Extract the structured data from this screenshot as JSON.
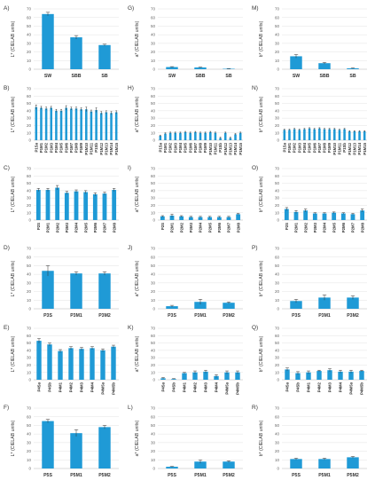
{
  "chart_data": [
    {
      "panel_label": "A)",
      "type": "bar",
      "ylabel": "L* (CIELAB units)",
      "ylim": [
        0,
        70
      ],
      "y_ticks": [
        "0",
        "10",
        "20",
        "30",
        "40",
        "50",
        "60",
        "70"
      ],
      "categories": [
        "SW",
        "SBB",
        "SB"
      ],
      "values": [
        64,
        37,
        28
      ],
      "errors": [
        2,
        2,
        1
      ],
      "grid": true,
      "bar_color": "#1f9ad6"
    },
    {
      "panel_label": "B)",
      "type": "bar",
      "ylabel": "L* (CIELAB units)",
      "ylim": [
        0,
        70
      ],
      "y_ticks": [
        "0",
        "10",
        "20",
        "30",
        "40",
        "50",
        "60",
        "70"
      ],
      "categories": [
        "P1Sa",
        "P1M1",
        "P1M2",
        "P1M3",
        "P1M4",
        "P1M5",
        "P1M6",
        "P1M7",
        "P1M8",
        "P1M9",
        "P1M10",
        "P1M11",
        "P1Sb",
        "P1M12",
        "P1M13",
        "P1M14",
        "P1M15"
      ],
      "values": [
        45,
        44,
        43,
        44,
        40,
        40,
        44,
        43,
        43,
        42,
        42,
        39,
        41,
        37,
        38,
        37,
        38
      ],
      "errors": [
        3,
        2,
        2,
        2,
        2,
        2,
        3,
        2,
        2,
        2,
        3,
        2,
        3,
        2,
        2,
        2,
        2
      ],
      "grid": true,
      "bar_color": "#1f9ad6"
    },
    {
      "panel_label": "C)",
      "type": "bar",
      "ylabel": "L* (CIELAB units)",
      "ylim": [
        0,
        70
      ],
      "y_ticks": [
        "0",
        "10",
        "20",
        "30",
        "40",
        "50",
        "60",
        "70"
      ],
      "categories": [
        "P2S",
        "P2M1",
        "P2M2",
        "P2M3",
        "P2M4",
        "P2M5",
        "P2M6",
        "P2M7",
        "P2M8"
      ],
      "values": [
        41,
        41,
        44,
        37,
        39,
        38,
        35,
        36,
        41
      ],
      "errors": [
        2,
        2,
        3,
        2,
        2,
        2,
        2,
        2,
        2
      ],
      "grid": true,
      "bar_color": "#1f9ad6"
    },
    {
      "panel_label": "D)",
      "type": "bar",
      "ylabel": "L* (CIELAB units)",
      "ylim": [
        0,
        70
      ],
      "y_ticks": [
        "0",
        "10",
        "20",
        "30",
        "40",
        "50",
        "60",
        "70"
      ],
      "categories": [
        "P3S",
        "P3M1",
        "P3M2"
      ],
      "values": [
        44,
        41,
        41
      ],
      "errors": [
        6,
        2,
        2
      ],
      "grid": true,
      "bar_color": "#1f9ad6"
    },
    {
      "panel_label": "E)",
      "type": "bar",
      "ylabel": "L* (CIELAB units)",
      "ylim": [
        0,
        70
      ],
      "y_ticks": [
        "0",
        "10",
        "20",
        "30",
        "40",
        "50",
        "60",
        "70"
      ],
      "categories": [
        "P4Sa",
        "P4Sb",
        "P4M1",
        "P4M2",
        "P4M3",
        "P4M4",
        "P4M5a",
        "P4M5b"
      ],
      "values": [
        53,
        48,
        39,
        43,
        42,
        43,
        40,
        45
      ],
      "errors": [
        3,
        2,
        2,
        2,
        2,
        2,
        2,
        2
      ],
      "grid": true,
      "bar_color": "#1f9ad6"
    },
    {
      "panel_label": "F)",
      "type": "bar",
      "ylabel": "L* (CIELAB units)",
      "ylim": [
        0,
        70
      ],
      "y_ticks": [
        "0",
        "10",
        "20",
        "30",
        "40",
        "50",
        "60",
        "70"
      ],
      "categories": [
        "P5S",
        "P5M1",
        "P5M2"
      ],
      "values": [
        55,
        41,
        48
      ],
      "errors": [
        2,
        4,
        2
      ],
      "grid": true,
      "bar_color": "#1f9ad6"
    },
    {
      "panel_label": "G)",
      "type": "bar",
      "ylabel": "a* (CIELAB units)",
      "ylim": [
        0,
        70
      ],
      "y_ticks": [
        "0",
        "10",
        "20",
        "30",
        "40",
        "50",
        "60",
        "70"
      ],
      "categories": [
        "SW",
        "SBB",
        "SB"
      ],
      "values": [
        2.5,
        2,
        0.5
      ],
      "errors": [
        0.5,
        0.5,
        0.3
      ],
      "grid": true,
      "bar_color": "#1f9ad6"
    },
    {
      "panel_label": "H)",
      "type": "bar",
      "ylabel": "a* (CIELAB units)",
      "ylim": [
        0,
        70
      ],
      "y_ticks": [
        "0",
        "10",
        "20",
        "30",
        "40",
        "50",
        "60",
        "70"
      ],
      "categories": [
        "P1Sa",
        "P1M1",
        "P1M2",
        "P1M3",
        "P1M4",
        "P1M5",
        "P1M6",
        "P1M7",
        "P1M8",
        "P1M9",
        "P1M10",
        "P1M11",
        "P1Sb",
        "P1M12",
        "P1M13",
        "P1M14",
        "P1M15"
      ],
      "values": [
        6,
        9,
        10,
        10,
        10,
        11,
        10,
        11,
        10,
        10,
        11,
        10,
        3,
        10,
        3,
        8,
        10
      ],
      "errors": [
        1,
        1,
        1,
        1,
        1,
        1,
        1,
        1,
        1,
        1,
        1,
        1,
        1,
        1,
        1,
        1,
        1
      ],
      "grid": true,
      "bar_color": "#1f9ad6"
    },
    {
      "panel_label": "I)",
      "type": "bar",
      "ylabel": "a* (CIELAB units)",
      "ylim": [
        0,
        70
      ],
      "y_ticks": [
        "0",
        "10",
        "20",
        "30",
        "40",
        "50",
        "60",
        "70"
      ],
      "categories": [
        "P2S",
        "P2M1",
        "P2M2",
        "P2M3",
        "P2M4",
        "P2M5",
        "P2M6",
        "P2M7",
        "P2M8"
      ],
      "values": [
        5,
        6,
        5,
        4,
        4,
        4,
        4,
        4,
        8
      ],
      "errors": [
        1,
        2,
        1,
        1,
        1,
        1,
        1,
        1,
        1
      ],
      "grid": true,
      "bar_color": "#1f9ad6"
    },
    {
      "panel_label": "J)",
      "type": "bar",
      "ylabel": "a* (CIELAB units)",
      "ylim": [
        0,
        70
      ],
      "y_ticks": [
        "0",
        "10",
        "20",
        "30",
        "40",
        "50",
        "60",
        "70"
      ],
      "categories": [
        "P3S",
        "P3M1",
        "P3M2"
      ],
      "values": [
        3,
        8,
        7
      ],
      "errors": [
        1,
        3,
        1
      ],
      "grid": true,
      "bar_color": "#1f9ad6"
    },
    {
      "panel_label": "K)",
      "type": "bar",
      "ylabel": "a* (CIELAB units)",
      "ylim": [
        0,
        70
      ],
      "y_ticks": [
        "0",
        "10",
        "20",
        "30",
        "40",
        "50",
        "60",
        "70"
      ],
      "categories": [
        "P4Sa",
        "P4Sb",
        "P4M1",
        "P4M2",
        "P4M3",
        "P4M4",
        "P4M5a",
        "P4M5b"
      ],
      "values": [
        2,
        1,
        9,
        10,
        11,
        5,
        10,
        10
      ],
      "errors": [
        1,
        0.5,
        1,
        2,
        2,
        2,
        2,
        2
      ],
      "grid": true,
      "bar_color": "#1f9ad6"
    },
    {
      "panel_label": "L)",
      "type": "bar",
      "ylabel": "a* (CIELAB units)",
      "ylim": [
        0,
        70
      ],
      "y_ticks": [
        "0",
        "10",
        "20",
        "30",
        "40",
        "50",
        "60",
        "70"
      ],
      "categories": [
        "P5S",
        "P5M1",
        "P5M2"
      ],
      "values": [
        2,
        8,
        8
      ],
      "errors": [
        0.5,
        2,
        1
      ],
      "grid": true,
      "bar_color": "#1f9ad6"
    },
    {
      "panel_label": "M)",
      "type": "bar",
      "ylabel": "b* (CIELAB units)",
      "ylim": [
        0,
        70
      ],
      "y_ticks": [
        "0",
        "10",
        "20",
        "30",
        "40",
        "50",
        "60",
        "70"
      ],
      "categories": [
        "SW",
        "SBB",
        "SB"
      ],
      "values": [
        15,
        7,
        1
      ],
      "errors": [
        2,
        1,
        0.5
      ],
      "grid": true,
      "bar_color": "#1f9ad6"
    },
    {
      "panel_label": "N)",
      "type": "bar",
      "ylabel": "b* (CIELAB units)",
      "ylim": [
        0,
        70
      ],
      "y_ticks": [
        "0",
        "10",
        "20",
        "30",
        "40",
        "50",
        "60",
        "70"
      ],
      "categories": [
        "P1Sa",
        "P1M1",
        "P1M2",
        "P1M3",
        "P1M4",
        "P1M5",
        "P1M6",
        "P1M7",
        "P1M8",
        "P1M9",
        "P1M10",
        "P1M11",
        "P1Sb",
        "P1M12",
        "P1M13",
        "P1M14",
        "P1M15"
      ],
      "values": [
        14,
        14,
        15,
        14,
        15,
        16,
        15,
        16,
        15,
        15,
        15,
        14,
        15,
        12,
        12,
        12,
        12
      ],
      "errors": [
        1,
        1,
        1,
        1,
        1,
        1,
        1,
        1,
        1,
        1,
        1,
        1,
        1,
        1,
        1,
        1,
        1
      ],
      "grid": true,
      "bar_color": "#1f9ad6"
    },
    {
      "panel_label": "O)",
      "type": "bar",
      "ylabel": "b* (CIELAB units)",
      "ylim": [
        0,
        70
      ],
      "y_ticks": [
        "0",
        "10",
        "20",
        "30",
        "40",
        "50",
        "60",
        "70"
      ],
      "categories": [
        "P2S",
        "P2M1",
        "P2M2",
        "P2M3",
        "P2M4",
        "P2M5",
        "P2M6",
        "P2M7",
        "P2M8"
      ],
      "values": [
        15,
        11,
        13,
        9,
        9,
        10,
        9,
        8,
        13
      ],
      "errors": [
        2,
        2,
        2,
        1,
        1,
        1,
        1,
        1,
        2
      ],
      "grid": true,
      "bar_color": "#1f9ad6"
    },
    {
      "panel_label": "P)",
      "type": "bar",
      "ylabel": "b* (CIELAB units)",
      "ylim": [
        0,
        70
      ],
      "y_ticks": [
        "0",
        "10",
        "20",
        "30",
        "40",
        "50",
        "60",
        "70"
      ],
      "categories": [
        "P3S",
        "P3M1",
        "P3M2"
      ],
      "values": [
        9,
        13,
        13
      ],
      "errors": [
        2,
        3,
        2
      ],
      "grid": true,
      "bar_color": "#1f9ad6"
    },
    {
      "panel_label": "Q)",
      "type": "bar",
      "ylabel": "b* (CIELAB units)",
      "ylim": [
        0,
        70
      ],
      "y_ticks": [
        "0",
        "10",
        "20",
        "30",
        "40",
        "50",
        "60",
        "70"
      ],
      "categories": [
        "P4Sa",
        "P4Sb",
        "P4M1",
        "P4M2",
        "P4M3",
        "P4M4",
        "P4M5a",
        "P4M5b"
      ],
      "values": [
        14,
        9,
        10,
        12,
        13,
        11,
        11,
        12
      ],
      "errors": [
        2,
        2,
        2,
        1,
        2,
        2,
        2,
        1
      ],
      "grid": true,
      "bar_color": "#1f9ad6"
    },
    {
      "panel_label": "R)",
      "type": "bar",
      "ylabel": "b* (CIELAB units)",
      "ylim": [
        0,
        70
      ],
      "y_ticks": [
        "0",
        "10",
        "20",
        "30",
        "40",
        "50",
        "60",
        "70"
      ],
      "categories": [
        "P5S",
        "P5M1",
        "P5M2"
      ],
      "values": [
        11,
        11,
        13
      ],
      "errors": [
        1,
        1,
        1
      ],
      "grid": true,
      "bar_color": "#1f9ad6"
    }
  ]
}
